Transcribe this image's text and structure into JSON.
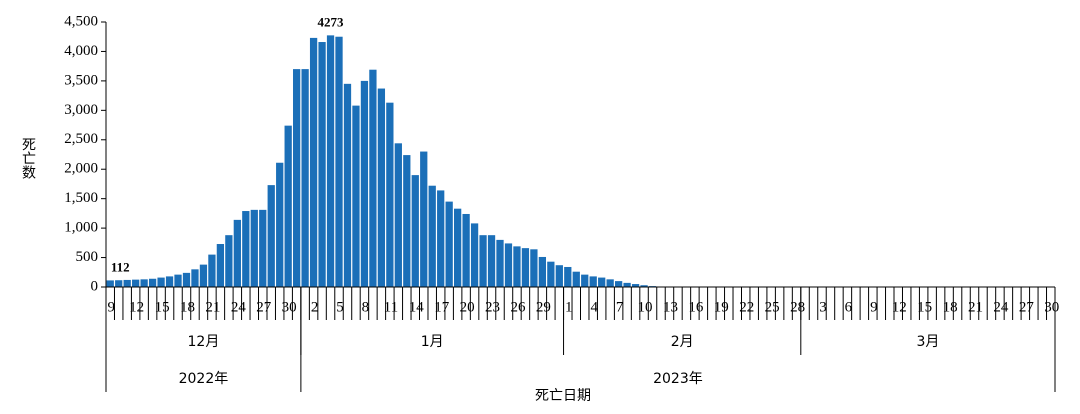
{
  "chart_data": {
    "type": "bar",
    "y_label": "死亡数",
    "x_label": "死亡日期",
    "color": "#1b6fb8",
    "ylim": [
      0,
      4500
    ],
    "yticks": [
      0,
      {
        "value": 500,
        "label": "500"
      },
      {
        "value": 1000,
        "label": "1,000"
      },
      {
        "value": 1500,
        "label": "1,500"
      },
      {
        "value": 2000,
        "label": "2,000"
      },
      {
        "value": 2500,
        "label": "2,500"
      },
      {
        "value": 3000,
        "label": "3,000"
      },
      {
        "value": 3500,
        "label": "3,500"
      },
      {
        "value": 4000,
        "label": "4,000"
      },
      {
        "value": 4500,
        "label": "4,500"
      }
    ],
    "years": [
      {
        "name": "2022年",
        "months": [
          {
            "name": "12月",
            "days": [
              9,
              null,
              null,
              12,
              null,
              null,
              15,
              null,
              null,
              18,
              null,
              null,
              21,
              null,
              null,
              24,
              null,
              null,
              27,
              null,
              null,
              30,
              null
            ]
          }
        ]
      },
      {
        "name": "2023年",
        "months": [
          {
            "name": "1月",
            "days": [
              null,
              2,
              null,
              null,
              5,
              null,
              null,
              8,
              null,
              null,
              11,
              null,
              null,
              14,
              null,
              null,
              17,
              null,
              null,
              20,
              null,
              null,
              23,
              null,
              null,
              26,
              null,
              null,
              29,
              null,
              null
            ]
          },
          {
            "name": "2月",
            "days": [
              1,
              null,
              null,
              4,
              null,
              null,
              7,
              null,
              null,
              10,
              null,
              null,
              13,
              null,
              null,
              16,
              null,
              null,
              19,
              null,
              null,
              22,
              null,
              null,
              25,
              null,
              null,
              28
            ]
          },
          {
            "name": "3月",
            "days": [
              null,
              null,
              3,
              null,
              null,
              6,
              null,
              null,
              9,
              null,
              null,
              12,
              null,
              null,
              15,
              null,
              null,
              18,
              null,
              null,
              21,
              null,
              null,
              24,
              null,
              null,
              27,
              null,
              null,
              30
            ]
          }
        ]
      }
    ],
    "values": [
      112,
      115,
      120,
      125,
      130,
      140,
      160,
      180,
      210,
      240,
      300,
      380,
      550,
      730,
      880,
      1140,
      1290,
      1310,
      1310,
      1730,
      2110,
      2740,
      3700,
      3700,
      4230,
      4160,
      4273,
      4250,
      3450,
      3080,
      3500,
      3690,
      3370,
      3130,
      2440,
      2240,
      1900,
      2300,
      1720,
      1640,
      1450,
      1330,
      1240,
      1080,
      880,
      880,
      800,
      740,
      690,
      660,
      640,
      510,
      430,
      370,
      340,
      260,
      210,
      180,
      160,
      130,
      100,
      70,
      50,
      30,
      15,
      0,
      0,
      0,
      0,
      0,
      0,
      0,
      0,
      0,
      0,
      0,
      0,
      0,
      0,
      0,
      0,
      0,
      0,
      0,
      0,
      0,
      0,
      0,
      0,
      0,
      0,
      0,
      0,
      0,
      0,
      0,
      0,
      0,
      0,
      0,
      0,
      0,
      0,
      0,
      0,
      0,
      0,
      0,
      0,
      0,
      0,
      0
    ],
    "data_labels": [
      0,
      26
    ]
  }
}
